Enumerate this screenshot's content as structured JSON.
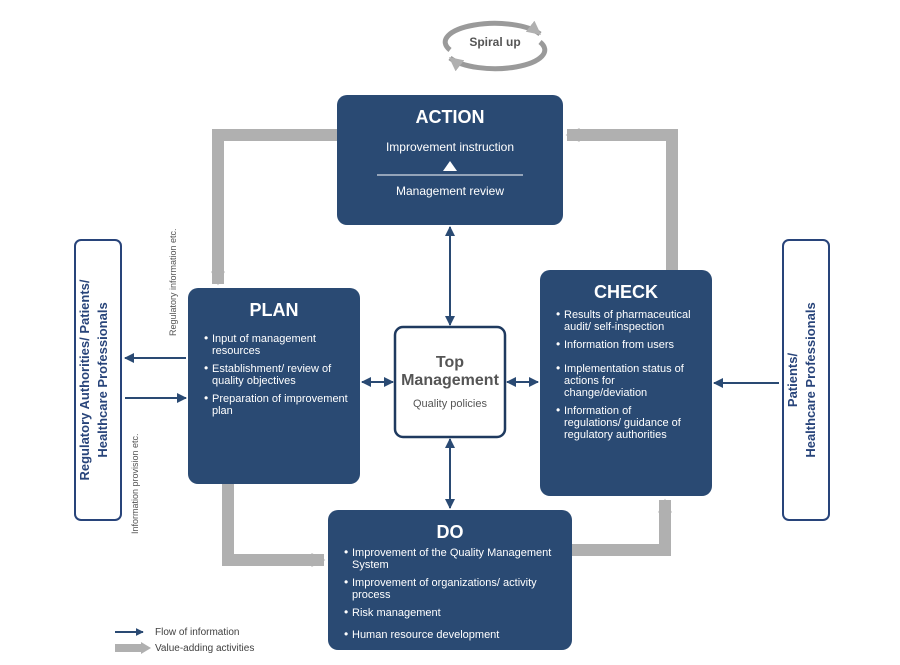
{
  "colors": {
    "box_fill": "#2a4a73",
    "box_text": "#ffffff",
    "center_border": "#1f3a5f",
    "center_text": "#555555",
    "center_bg": "#ffffff",
    "side_box_border": "#28447a",
    "side_text": "#28447a",
    "arrow_gray": "#b0b0b0",
    "arrow_blue": "#2a4a73",
    "small_label": "#555555",
    "spiral_gray": "#9a9a9a",
    "spiral_label": "#555555",
    "legend_text": "#404040"
  },
  "layout": {
    "box_radius": 10,
    "title_fontsize": 18,
    "center_title_fontsize": 16,
    "center_sub_fontsize": 11,
    "bullet_fontsize": 11,
    "side_fontsize": 13,
    "small_label_fontsize": 9,
    "legend_fontsize": 10,
    "spiral_fontsize": 12
  },
  "spiral": {
    "label": "Spiral up"
  },
  "center": {
    "title": "Top",
    "title2": "Management",
    "subtitle": "Quality policies"
  },
  "boxes": {
    "action": {
      "title": "ACTION",
      "line1": "Improvement instruction",
      "line2": "Management review"
    },
    "plan": {
      "title": "PLAN",
      "bullets": [
        "Input of management resources",
        "Establishment/ review of quality objectives",
        "Preparation of improvement plan"
      ]
    },
    "check": {
      "title": "CHECK",
      "bullets": [
        "Results of pharmaceutical audit/ self-inspection",
        "Information from users",
        "Implementation status of actions for change/deviation",
        "Information of regulations/ guidance of regulatory authorities"
      ]
    },
    "do": {
      "title": "DO",
      "bullets": [
        "Improvement of the Quality Management System",
        "Improvement of organizations/ activity process",
        "Risk management",
        "Human resource development"
      ]
    }
  },
  "side_left": {
    "line1": "Regulatory Authorities/ Patients/",
    "line2": "Healthcare Professionals"
  },
  "side_right": {
    "line1": "Patients/",
    "line2": "Healthcare Professionals"
  },
  "small_labels": {
    "top": "Regulatory information etc.",
    "bottom": "Information provision etc."
  },
  "legend": {
    "blue": "Flow of information",
    "gray": "Value-adding activities"
  }
}
